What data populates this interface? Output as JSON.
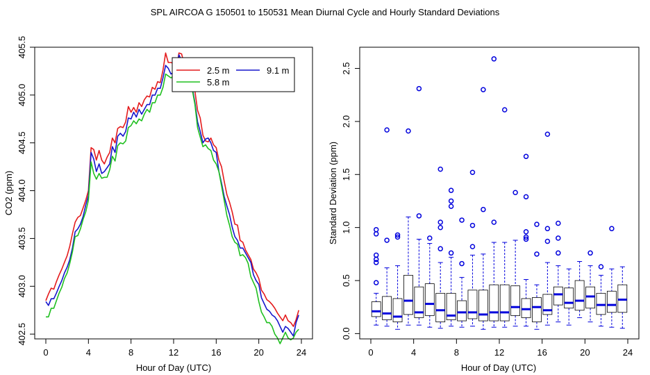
{
  "title": "SPL   AIRCOA G   150501 to 150531   Mean Diurnal Cycle and Hourly Standard Deviations",
  "colors": {
    "red": "#e41a1c",
    "blue": "#1515cc",
    "green": "#1fbf1f",
    "box_whisker": "#0000dd",
    "axis": "#000000"
  },
  "chart_data": [
    {
      "type": "line",
      "xlabel": "Hour of Day (UTC)",
      "ylabel": "CO2 (ppm)",
      "xlim": [
        0,
        24
      ],
      "ylim": [
        402.45,
        405.5
      ],
      "xticks": [
        "0",
        "4",
        "8",
        "12",
        "16",
        "20",
        "24"
      ],
      "yticks": [
        "402.5",
        "403.0",
        "403.5",
        "404.0",
        "404.5",
        "405.0",
        "405.5"
      ],
      "legend_position": "top-right",
      "x": [
        0,
        0.25,
        0.5,
        0.75,
        1,
        1.25,
        1.5,
        1.75,
        2,
        2.25,
        2.5,
        2.75,
        3,
        3.25,
        3.5,
        3.75,
        4,
        4.25,
        4.5,
        4.75,
        5,
        5.25,
        5.5,
        5.75,
        6,
        6.25,
        6.5,
        6.75,
        7,
        7.25,
        7.5,
        7.75,
        8,
        8.25,
        8.5,
        8.75,
        9,
        9.25,
        9.5,
        9.75,
        10,
        10.25,
        10.5,
        10.75,
        11,
        11.25,
        11.5,
        11.75,
        12,
        12.25,
        12.5,
        12.75,
        13,
        13.25,
        13.5,
        13.75,
        14,
        14.25,
        14.5,
        14.75,
        15,
        15.25,
        15.5,
        15.75,
        16,
        16.25,
        16.5,
        16.75,
        17,
        17.25,
        17.5,
        17.75,
        18,
        18.25,
        18.5,
        18.75,
        19,
        19.25,
        19.5,
        19.75,
        20,
        20.25,
        20.5,
        20.75,
        21,
        21.25,
        21.5,
        21.75,
        22,
        22.25,
        22.5,
        22.75,
        23,
        23.25,
        23.5,
        23.75
      ],
      "series": [
        {
          "name": "2.5 m",
          "color": "red",
          "values": [
            402.85,
            402.92,
            402.98,
            402.97,
            403.05,
            403.12,
            403.18,
            403.25,
            403.32,
            403.42,
            403.55,
            403.67,
            403.72,
            403.74,
            403.82,
            403.9,
            404.0,
            404.45,
            404.43,
            404.32,
            404.42,
            404.32,
            404.28,
            404.35,
            404.4,
            404.55,
            404.5,
            404.65,
            404.67,
            404.66,
            404.72,
            404.88,
            404.82,
            404.87,
            404.82,
            404.92,
            404.88,
            404.95,
            404.99,
            404.98,
            405.08,
            405.06,
            405.14,
            405.13,
            405.26,
            405.44,
            405.34,
            405.34,
            405.33,
            405.26,
            405.44,
            405.43,
            405.32,
            405.2,
            405.22,
            405.18,
            405.04,
            404.84,
            404.76,
            404.58,
            404.52,
            404.51,
            404.55,
            404.48,
            404.45,
            404.32,
            404.25,
            404.1,
            403.96,
            403.88,
            403.78,
            403.65,
            403.64,
            403.48,
            403.46,
            403.38,
            403.33,
            403.28,
            403.18,
            403.14,
            403.08,
            402.96,
            402.92,
            402.86,
            402.84,
            402.81,
            402.77,
            402.72,
            402.68,
            402.64,
            402.7,
            402.64,
            402.62,
            402.58,
            402.65,
            402.75
          ]
        },
        {
          "name": "9.1 m",
          "color": "blue",
          "values": [
            402.84,
            402.8,
            402.87,
            402.87,
            402.93,
            403.0,
            403.06,
            403.14,
            403.2,
            403.28,
            403.4,
            403.57,
            403.6,
            403.65,
            403.73,
            403.85,
            403.95,
            404.4,
            404.33,
            404.2,
            404.28,
            404.18,
            404.2,
            404.24,
            404.28,
            404.46,
            404.4,
            404.57,
            404.6,
            404.57,
            404.62,
            404.76,
            404.75,
            404.82,
            404.77,
            404.85,
            404.8,
            404.85,
            404.9,
            404.9,
            405.0,
            405.0,
            405.07,
            405.07,
            405.18,
            405.31,
            405.28,
            405.22,
            405.24,
            405.26,
            405.42,
            405.36,
            405.24,
            405.1,
            405.18,
            405.08,
            404.92,
            404.72,
            404.62,
            404.5,
            404.54,
            404.55,
            404.5,
            404.42,
            404.4,
            404.2,
            404.08,
            403.94,
            403.84,
            403.75,
            403.62,
            403.52,
            403.48,
            403.4,
            403.4,
            403.35,
            403.3,
            403.25,
            403.12,
            403.06,
            403.02,
            402.88,
            402.82,
            402.76,
            402.74,
            402.7,
            402.68,
            402.64,
            402.58,
            402.52,
            402.58,
            402.56,
            402.52,
            402.48,
            402.62,
            402.7
          ]
        },
        {
          "name": "5.8 m",
          "color": "green",
          "values": [
            402.68,
            402.68,
            402.77,
            402.77,
            402.85,
            402.93,
            402.99,
            403.08,
            403.14,
            403.24,
            403.36,
            403.52,
            403.53,
            403.6,
            403.7,
            403.78,
            403.9,
            404.3,
            404.18,
            404.12,
            404.18,
            404.13,
            404.14,
            404.14,
            404.22,
            404.36,
            404.31,
            404.47,
            404.5,
            404.49,
            404.52,
            404.66,
            404.68,
            404.73,
            404.7,
            404.75,
            404.73,
            404.8,
            404.85,
            404.82,
            404.92,
            404.92,
            405.0,
            405.0,
            405.08,
            405.22,
            405.2,
            405.18,
            405.2,
            405.1,
            405.26,
            405.16,
            405.08,
            405.06,
            405.1,
            405.06,
            404.9,
            404.66,
            404.56,
            404.46,
            404.48,
            404.44,
            404.42,
            404.32,
            404.28,
            404.2,
            404.05,
            403.9,
            403.74,
            403.64,
            403.52,
            403.46,
            403.44,
            403.32,
            403.33,
            403.3,
            403.24,
            403.1,
            403.04,
            402.98,
            402.84,
            402.73,
            402.68,
            402.62,
            402.62,
            402.58,
            402.5,
            402.46,
            402.4,
            402.46,
            402.52,
            402.46,
            402.44,
            402.46,
            402.52,
            402.55
          ]
        }
      ]
    },
    {
      "type": "box",
      "xlabel": "Hour of Day (UTC)",
      "ylabel": "Standard Deviation (ppm)",
      "xlim": [
        0,
        24
      ],
      "ylim": [
        -0.05,
        2.7
      ],
      "xticks": [
        "0",
        "4",
        "8",
        "12",
        "16",
        "20",
        "24"
      ],
      "yticks": [
        "0.0",
        "0.5",
        "1.0",
        "1.5",
        "2.0",
        "2.5"
      ],
      "boxes": [
        {
          "x": 0.5,
          "min": 0.08,
          "q1": 0.16,
          "median": 0.21,
          "q3": 0.3,
          "max": 0.38,
          "outliers": [
            0.48,
            0.67,
            0.7,
            0.74,
            0.94,
            0.98
          ]
        },
        {
          "x": 1.5,
          "min": 0.07,
          "q1": 0.13,
          "median": 0.19,
          "q3": 0.35,
          "max": 0.62,
          "outliers": [
            0.88,
            1.92
          ]
        },
        {
          "x": 2.5,
          "min": 0.04,
          "q1": 0.11,
          "median": 0.16,
          "q3": 0.33,
          "max": 0.64,
          "outliers": [
            0.91,
            0.93
          ]
        },
        {
          "x": 3.5,
          "min": 0.08,
          "q1": 0.18,
          "median": 0.31,
          "q3": 0.55,
          "max": 1.1,
          "outliers": [
            1.91
          ]
        },
        {
          "x": 4.5,
          "min": 0.08,
          "q1": 0.15,
          "median": 0.2,
          "q3": 0.44,
          "max": 0.89,
          "outliers": [
            1.11,
            2.31
          ]
        },
        {
          "x": 5.5,
          "min": 0.06,
          "q1": 0.17,
          "median": 0.28,
          "q3": 0.47,
          "max": 0.85,
          "outliers": [
            0.9
          ]
        },
        {
          "x": 6.5,
          "min": 0.05,
          "q1": 0.11,
          "median": 0.22,
          "q3": 0.38,
          "max": 0.67,
          "outliers": [
            0.8,
            1.0,
            1.05,
            1.55
          ]
        },
        {
          "x": 7.5,
          "min": 0.07,
          "q1": 0.13,
          "median": 0.17,
          "q3": 0.38,
          "max": 0.72,
          "outliers": [
            0.76,
            1.2,
            1.25,
            1.35
          ]
        },
        {
          "x": 8.5,
          "min": 0.06,
          "q1": 0.12,
          "median": 0.2,
          "q3": 0.31,
          "max": 0.53,
          "outliers": [
            0.66,
            1.07
          ]
        },
        {
          "x": 9.5,
          "min": 0.07,
          "q1": 0.14,
          "median": 0.2,
          "q3": 0.41,
          "max": 0.74,
          "outliers": [
            0.82,
            1.02,
            1.52
          ]
        },
        {
          "x": 10.5,
          "min": 0.04,
          "q1": 0.12,
          "median": 0.18,
          "q3": 0.41,
          "max": 0.75,
          "outliers": [
            1.17,
            2.3
          ]
        },
        {
          "x": 11.5,
          "min": 0.06,
          "q1": 0.12,
          "median": 0.2,
          "q3": 0.46,
          "max": 0.86,
          "outliers": [
            1.05,
            2.59
          ]
        },
        {
          "x": 12.5,
          "min": 0.06,
          "q1": 0.12,
          "median": 0.2,
          "q3": 0.46,
          "max": 0.86,
          "outliers": [
            2.11
          ]
        },
        {
          "x": 13.5,
          "min": 0.07,
          "q1": 0.17,
          "median": 0.25,
          "q3": 0.45,
          "max": 0.88,
          "outliers": [
            1.33
          ]
        },
        {
          "x": 14.5,
          "min": 0.07,
          "q1": 0.15,
          "median": 0.23,
          "q3": 0.33,
          "max": 0.51,
          "outliers": [
            0.89,
            0.91,
            0.96,
            1.29,
            1.67
          ]
        },
        {
          "x": 15.5,
          "min": 0.04,
          "q1": 0.11,
          "median": 0.25,
          "q3": 0.34,
          "max": 0.46,
          "outliers": [
            0.75,
            1.03
          ]
        },
        {
          "x": 16.5,
          "min": 0.08,
          "q1": 0.18,
          "median": 0.22,
          "q3": 0.37,
          "max": 0.67,
          "outliers": [
            0.87,
            0.99,
            1.88
          ]
        },
        {
          "x": 17.5,
          "min": 0.11,
          "q1": 0.27,
          "median": 0.37,
          "q3": 0.44,
          "max": 0.64,
          "outliers": [
            0.76,
            0.9,
            1.04
          ]
        },
        {
          "x": 18.5,
          "min": 0.08,
          "q1": 0.24,
          "median": 0.29,
          "q3": 0.43,
          "max": 0.61,
          "outliers": []
        },
        {
          "x": 19.5,
          "min": 0.15,
          "q1": 0.22,
          "median": 0.31,
          "q3": 0.5,
          "max": 0.68,
          "outliers": []
        },
        {
          "x": 20.5,
          "min": 0.11,
          "q1": 0.24,
          "median": 0.35,
          "q3": 0.44,
          "max": 0.64,
          "outliers": [
            0.76
          ]
        },
        {
          "x": 21.5,
          "min": 0.07,
          "q1": 0.18,
          "median": 0.27,
          "q3": 0.38,
          "max": 0.55,
          "outliers": [
            0.63
          ]
        },
        {
          "x": 22.5,
          "min": 0.06,
          "q1": 0.2,
          "median": 0.27,
          "q3": 0.4,
          "max": 0.61,
          "outliers": [
            0.99
          ]
        },
        {
          "x": 23.5,
          "min": 0.05,
          "q1": 0.2,
          "median": 0.32,
          "q3": 0.46,
          "max": 0.63,
          "outliers": []
        }
      ]
    }
  ]
}
